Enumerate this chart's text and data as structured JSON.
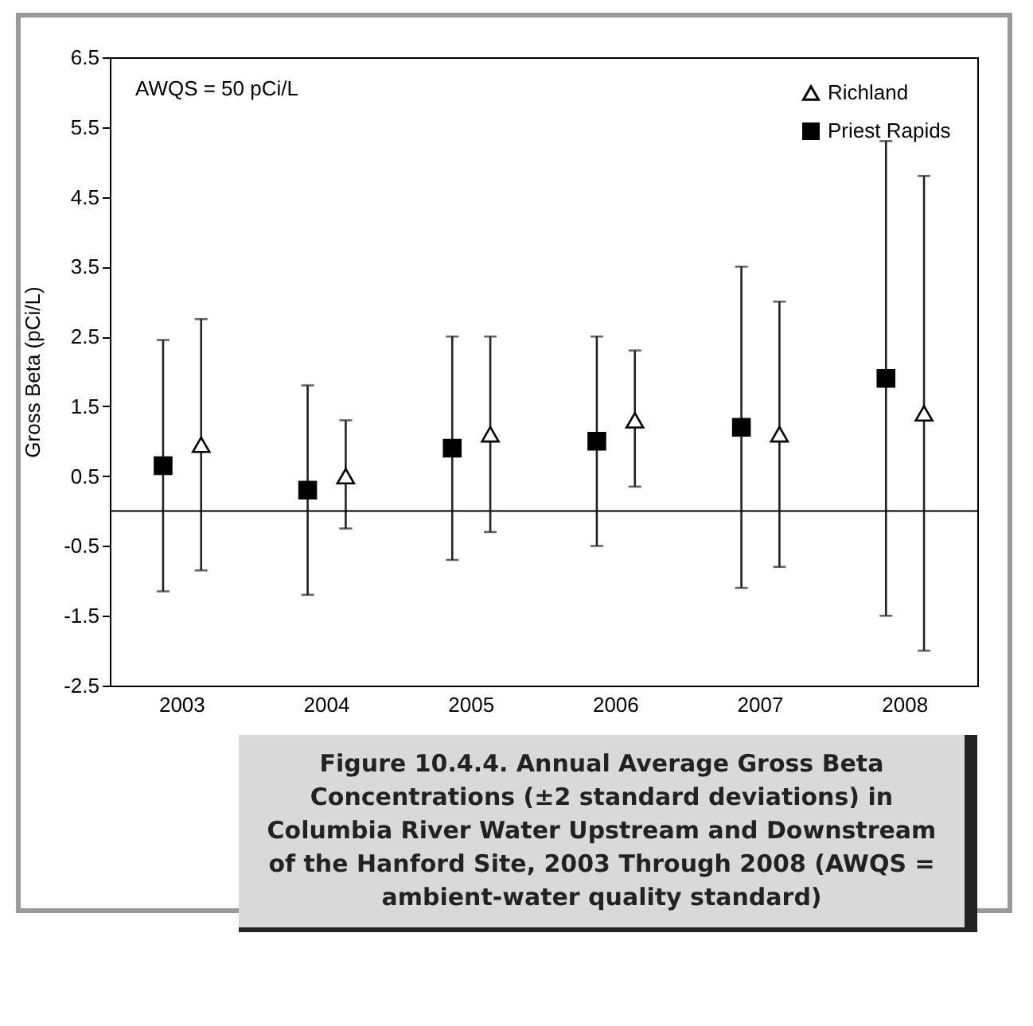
{
  "chart_data": {
    "type": "scatter",
    "title": "Figure 10.4.4.  Annual Average Gross Beta Concentrations (±2 standard deviations) in Columbia River Water Upstream and Downstream of the Hanford Site, 2003 Through 2008 (AWQS = ambient-water quality standard)",
    "ylabel": "Gross Beta (pCi/L)",
    "annotations": [
      "AWQS = 50 pCi/L"
    ],
    "categories": [
      "2003",
      "2004",
      "2005",
      "2006",
      "2007",
      "2008"
    ],
    "series": [
      {
        "name": "Richland",
        "color": "#000000",
        "marker": "triangle",
        "values": [
          0.95,
          0.5,
          1.1,
          1.3,
          1.1,
          1.4
        ],
        "errors": [
          [
            -0.85,
            2.75
          ],
          [
            -0.25,
            1.3
          ],
          [
            -0.3,
            2.5
          ],
          [
            0.35,
            2.3
          ],
          [
            -0.8,
            3.0
          ],
          [
            -2.0,
            4.8
          ]
        ]
      },
      {
        "name": "Priest Rapids",
        "color": "#000000",
        "marker": "square",
        "values": [
          0.65,
          0.3,
          0.9,
          1.0,
          1.2,
          1.9
        ],
        "errors": [
          [
            -1.15,
            2.45
          ],
          [
            -1.2,
            1.8
          ],
          [
            -0.7,
            2.5
          ],
          [
            -0.5,
            2.5
          ],
          [
            -1.1,
            3.5
          ],
          [
            -1.5,
            5.3
          ]
        ]
      }
    ],
    "ylim": [
      -2.5,
      6.5
    ],
    "yticks": [
      -2.5,
      -1.5,
      -0.5,
      0.5,
      1.5,
      2.5,
      3.5,
      4.5,
      5.5,
      6.5
    ],
    "ref_lines": [
      {
        "axis": "y",
        "value": 0,
        "color": "#000000"
      }
    ],
    "grid": false,
    "legend": "top right"
  }
}
